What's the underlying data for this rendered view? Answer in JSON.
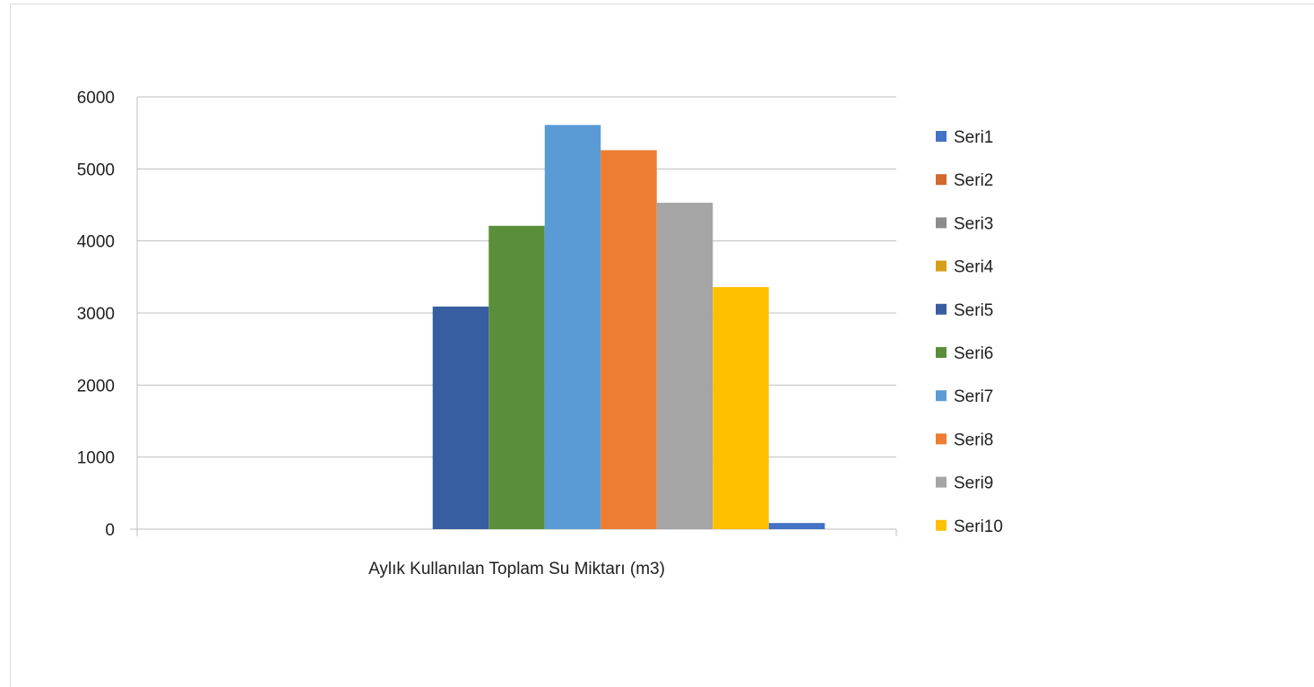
{
  "chart_data": {
    "type": "bar",
    "categories": [
      "Aylık Kullanılan Toplam Su Miktarı (m3)"
    ],
    "series": [
      {
        "name": "Seri1",
        "values": [
          0
        ],
        "color": "#4472c4"
      },
      {
        "name": "Seri2",
        "values": [
          0
        ],
        "color": "#d46a2e"
      },
      {
        "name": "Seri3",
        "values": [
          0
        ],
        "color": "#8c8c8c"
      },
      {
        "name": "Seri4",
        "values": [
          0
        ],
        "color": "#d4a017"
      },
      {
        "name": "Seri5",
        "values": [
          3090
        ],
        "color": "#365ea0"
      },
      {
        "name": "Seri6",
        "values": [
          4210
        ],
        "color": "#5b8e3a"
      },
      {
        "name": "Seri7",
        "values": [
          5610
        ],
        "color": "#5b9bd5"
      },
      {
        "name": "Seri8",
        "values": [
          5260
        ],
        "color": "#ed7d31"
      },
      {
        "name": "Seri9",
        "values": [
          4530
        ],
        "color": "#a5a5a5"
      },
      {
        "name": "Seri10",
        "values": [
          3360
        ],
        "color": "#ffc000"
      },
      {
        "name": "",
        "values": [
          85
        ],
        "color": "#4472c4"
      }
    ],
    "y_ticks": [
      "0",
      "1000",
      "2000",
      "3000",
      "4000",
      "5000",
      "6000"
    ],
    "ylim": [
      0,
      6000
    ],
    "grid": true,
    "legend_position": "right",
    "legend_entries": [
      "Seri1",
      "Seri2",
      "Seri3",
      "Seri4",
      "Seri5",
      "Seri6",
      "Seri7",
      "Seri8",
      "Seri9",
      "Seri10"
    ],
    "title": "",
    "xlabel": "",
    "ylabel": ""
  }
}
